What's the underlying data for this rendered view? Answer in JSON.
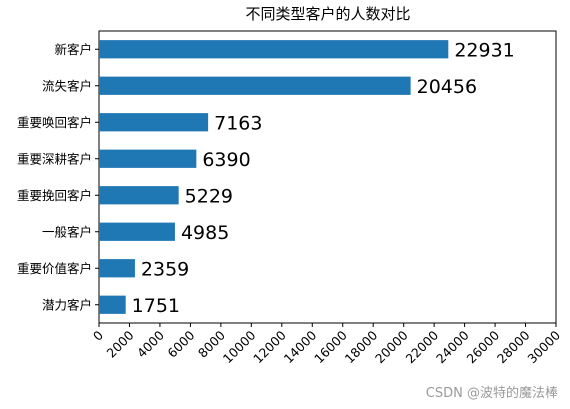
{
  "watermark": "CSDN @波特的魔法棒",
  "chart_data": {
    "type": "bar",
    "orientation": "horizontal",
    "title": "不同类型客户的人数对比",
    "xlabel": "",
    "ylabel": "",
    "categories": [
      "新客户",
      "流失客户",
      "重要唤回客户",
      "重要深耕客户",
      "重要挽回客户",
      "一般客户",
      "重要价值客户",
      "潜力客户"
    ],
    "values": [
      22931,
      20456,
      7163,
      6390,
      5229,
      4985,
      2359,
      1751
    ],
    "xlim": [
      0,
      30000
    ],
    "xticks": [
      0,
      2000,
      4000,
      6000,
      8000,
      10000,
      12000,
      14000,
      16000,
      18000,
      20000,
      22000,
      24000,
      26000,
      28000,
      30000
    ],
    "bar_color": "#1f77b4",
    "grid": false,
    "legend": "none"
  }
}
